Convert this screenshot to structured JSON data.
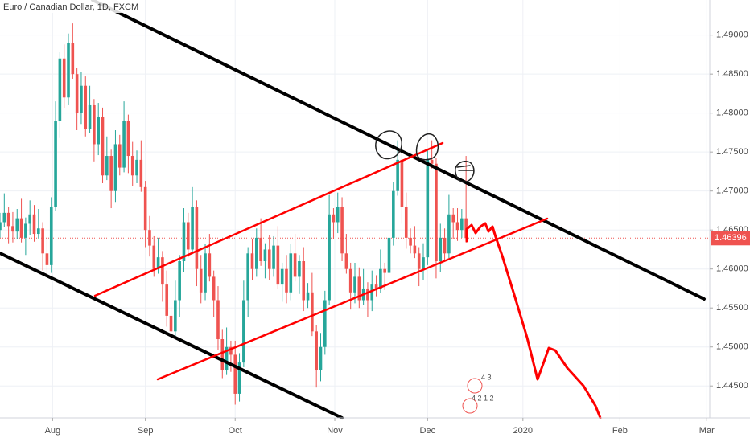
{
  "chart_data": {
    "type": "candlestick",
    "title": "Euro / Canadian Dollar, 1D, FXCM",
    "up_color": "#26a69a",
    "down_color": "#ef5350",
    "grid": true,
    "xlim": [
      0,
      166
    ],
    "ylim": [
      1.4409,
      1.4945
    ],
    "xticks": [
      {
        "value": 12.3,
        "label": "Aug"
      },
      {
        "value": 34,
        "label": "Sep"
      },
      {
        "value": 55,
        "label": "Oct"
      },
      {
        "value": 78.3,
        "label": "Nov"
      },
      {
        "value": 100,
        "label": "Dec"
      },
      {
        "value": 122.3,
        "label": "2020"
      },
      {
        "value": 145,
        "label": "Feb"
      },
      {
        "value": 165.3,
        "label": "Mar"
      }
    ],
    "yticks": [
      {
        "value": 1.49,
        "label": "1.49000"
      },
      {
        "value": 1.485,
        "label": "1.48500"
      },
      {
        "value": 1.48,
        "label": "1.48000"
      },
      {
        "value": 1.475,
        "label": "1.47500"
      },
      {
        "value": 1.47,
        "label": "1.47000"
      },
      {
        "value": 1.465,
        "label": "1.46500"
      },
      {
        "value": 1.46,
        "label": "1.46000"
      },
      {
        "value": 1.455,
        "label": "1.45500"
      },
      {
        "value": 1.45,
        "label": "1.45000"
      },
      {
        "value": 1.445,
        "label": "1.44500"
      }
    ],
    "last_price": 1.46396,
    "event_badges": [
      "4 3",
      "4 2 1 2"
    ],
    "open": [
      1.465,
      1.466,
      1.4672,
      1.4655,
      1.4648,
      1.4665,
      1.464,
      1.4658,
      1.467,
      1.4645,
      1.4652,
      1.462,
      1.4605,
      1.468,
      1.479,
      1.487,
      1.482,
      1.489,
      1.485,
      1.48,
      1.4835,
      1.478,
      1.481,
      1.476,
      1.4795,
      1.472,
      1.4745,
      1.47,
      1.476,
      1.473,
      1.479,
      1.4745,
      1.472,
      1.474,
      1.4705,
      1.465,
      1.463,
      1.46,
      1.4615,
      1.458,
      1.454,
      1.452,
      1.456,
      1.461,
      1.466,
      1.4625,
      1.468,
      1.46,
      1.457,
      1.462,
      1.459,
      1.456,
      1.451,
      1.447,
      1.45,
      1.449,
      1.444,
      1.448,
      1.456,
      1.462,
      1.46,
      1.464,
      1.461,
      1.4625,
      1.46,
      1.463,
      1.458,
      1.46,
      1.457,
      1.462,
      1.459,
      1.461,
      1.456,
      1.457,
      1.452,
      1.447,
      1.45,
      1.456,
      1.467,
      1.466,
      1.468,
      1.462,
      1.46,
      1.457,
      1.459,
      1.456,
      1.4575,
      1.456,
      1.458,
      1.4575,
      1.46,
      1.4595,
      1.464,
      1.47,
      1.474,
      1.468,
      1.464,
      1.463,
      1.462,
      1.46,
      1.4615,
      1.474,
      1.4735,
      1.461,
      1.464,
      1.462,
      1.467,
      1.466,
      1.465,
      1.4665
    ],
    "high": [
      1.4672,
      1.4697,
      1.468,
      1.4673,
      1.4677,
      1.469,
      1.4666,
      1.4688,
      1.4682,
      1.4677,
      1.466,
      1.4638,
      1.4692,
      1.4815,
      1.4878,
      1.4888,
      1.4902,
      1.4915,
      1.4858,
      1.4853,
      1.4847,
      1.4835,
      1.4818,
      1.4813,
      1.4807,
      1.477,
      1.4753,
      1.4778,
      1.4772,
      1.4815,
      1.4798,
      1.4763,
      1.4752,
      1.4765,
      1.4713,
      1.4668,
      1.4642,
      1.464,
      1.4623,
      1.4598,
      1.4552,
      1.4585,
      1.4618,
      1.4678,
      1.4672,
      1.4705,
      1.4688,
      1.4618,
      1.4632,
      1.4645,
      1.4598,
      1.4578,
      1.4522,
      1.4525,
      1.4508,
      1.4508,
      1.4492,
      1.4585,
      1.4628,
      1.4638,
      1.4652,
      1.4665,
      1.4633,
      1.4643,
      1.4642,
      1.4655,
      1.4608,
      1.4618,
      1.4632,
      1.4645,
      1.4618,
      1.4628,
      1.4582,
      1.4595,
      1.4528,
      1.4518,
      1.4572,
      1.4695,
      1.4678,
      1.4698,
      1.4692,
      1.4645,
      1.4608,
      1.4608,
      1.4602,
      1.46,
      1.4583,
      1.4598,
      1.4592,
      1.4625,
      1.4608,
      1.4658,
      1.4712,
      1.4765,
      1.4748,
      1.4698,
      1.4652,
      1.4655,
      1.4628,
      1.4633,
      1.4752,
      1.4765,
      1.4743,
      1.4658,
      1.4652,
      1.4695,
      1.4678,
      1.4678,
      1.4677,
      1.4745
    ],
    "low": [
      1.464,
      1.4654,
      1.4633,
      1.4634,
      1.4638,
      1.4634,
      1.4618,
      1.4644,
      1.4635,
      1.4639,
      1.4598,
      1.4591,
      1.4595,
      1.4674,
      1.4768,
      1.4806,
      1.481,
      1.4844,
      1.4778,
      1.4786,
      1.477,
      1.4774,
      1.4738,
      1.4746,
      1.471,
      1.4714,
      1.4678,
      1.4686,
      1.472,
      1.4724,
      1.4723,
      1.4706,
      1.471,
      1.4699,
      1.4628,
      1.4616,
      1.459,
      1.4594,
      1.4558,
      1.4526,
      1.451,
      1.4514,
      1.4538,
      1.4596,
      1.4615,
      1.4619,
      1.4578,
      1.4556,
      1.456,
      1.4584,
      1.4538,
      1.4496,
      1.446,
      1.4464,
      1.4468,
      1.4426,
      1.443,
      1.4474,
      1.4538,
      1.4586,
      1.459,
      1.4604,
      1.4588,
      1.4586,
      1.459,
      1.4574,
      1.4558,
      1.4556,
      1.456,
      1.4584,
      1.4568,
      1.4546,
      1.455,
      1.4514,
      1.4448,
      1.4456,
      1.449,
      1.4554,
      1.4638,
      1.4646,
      1.461,
      1.4594,
      1.4548,
      1.4556,
      1.455,
      1.4554,
      1.4538,
      1.4546,
      1.4565,
      1.4569,
      1.4573,
      1.4581,
      1.463,
      1.4694,
      1.4658,
      1.4626,
      1.462,
      1.4614,
      1.4578,
      1.4586,
      1.4605,
      1.4729,
      1.4588,
      1.4596,
      1.461,
      1.4614,
      1.4638,
      1.4636,
      1.464,
      1.4634
    ],
    "close": [
      1.466,
      1.4672,
      1.4655,
      1.4648,
      1.4665,
      1.464,
      1.4658,
      1.467,
      1.4645,
      1.4652,
      1.462,
      1.4605,
      1.468,
      1.479,
      1.487,
      1.482,
      1.489,
      1.485,
      1.48,
      1.4835,
      1.478,
      1.481,
      1.476,
      1.4795,
      1.472,
      1.4745,
      1.47,
      1.476,
      1.473,
      1.479,
      1.4745,
      1.472,
      1.474,
      1.4705,
      1.465,
      1.463,
      1.46,
      1.4615,
      1.458,
      1.454,
      1.452,
      1.456,
      1.461,
      1.466,
      1.4625,
      1.468,
      1.46,
      1.457,
      1.462,
      1.459,
      1.456,
      1.451,
      1.447,
      1.45,
      1.449,
      1.444,
      1.448,
      1.456,
      1.462,
      1.46,
      1.464,
      1.461,
      1.4625,
      1.46,
      1.463,
      1.458,
      1.46,
      1.457,
      1.462,
      1.459,
      1.461,
      1.456,
      1.457,
      1.452,
      1.447,
      1.45,
      1.456,
      1.467,
      1.466,
      1.468,
      1.462,
      1.46,
      1.457,
      1.459,
      1.456,
      1.4575,
      1.456,
      1.458,
      1.4575,
      1.46,
      1.4595,
      1.464,
      1.47,
      1.474,
      1.468,
      1.464,
      1.463,
      1.462,
      1.46,
      1.4615,
      1.474,
      1.4735,
      1.461,
      1.464,
      1.462,
      1.467,
      1.466,
      1.465,
      1.4665,
      1.46396
    ]
  }
}
